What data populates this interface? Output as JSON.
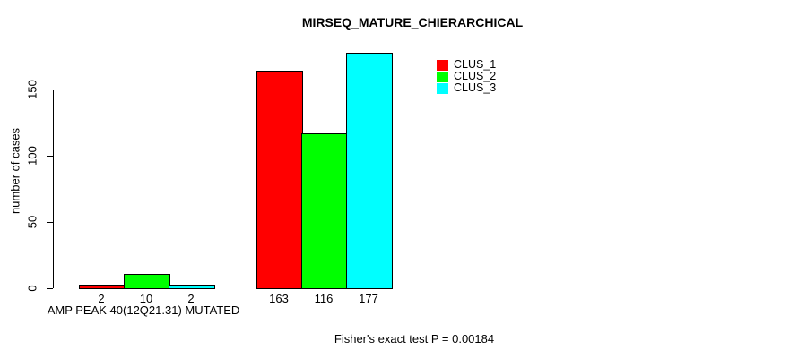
{
  "chart_data": {
    "type": "bar",
    "title": "MIRSEQ_MATURE_CHIERARCHICAL",
    "ylabel": "number of cases",
    "xlabel": "AMP PEAK 40(12Q21.31) MUTATED",
    "footnote": "Fisher's exact test P = 0.00184",
    "ylim": [
      0,
      177
    ],
    "yticks": [
      0,
      50,
      100,
      150
    ],
    "grid": false,
    "legend_position": "top-right",
    "group_labels": [
      "AMP PEAK 40(12Q21.31) MUTATED",
      ""
    ],
    "series": [
      {
        "name": "CLUS_1",
        "color": "#ff0000",
        "values": [
          2,
          163
        ]
      },
      {
        "name": "CLUS_2",
        "color": "#00ff00",
        "values": [
          10,
          116
        ]
      },
      {
        "name": "CLUS_3",
        "color": "#00ffff",
        "values": [
          2,
          177
        ]
      }
    ],
    "bar_value_labels": [
      [
        2,
        10,
        2
      ],
      [
        163,
        116,
        177
      ]
    ],
    "colors": {
      "axis": "#000000",
      "background": "#ffffff",
      "bar_border": "#000000"
    }
  }
}
